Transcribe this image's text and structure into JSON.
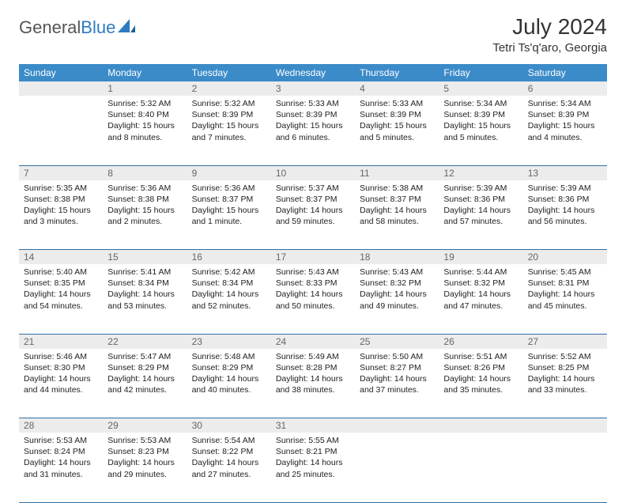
{
  "brand": {
    "part1": "General",
    "part2": "Blue"
  },
  "title": "July 2024",
  "location": "Tetri Ts'q'aro, Georgia",
  "weekdays": [
    "Sunday",
    "Monday",
    "Tuesday",
    "Wednesday",
    "Thursday",
    "Friday",
    "Saturday"
  ],
  "colors": {
    "header_bg": "#3b8bc9",
    "header_text": "#ffffff",
    "daynum_bg": "#ececec",
    "daynum_text": "#666666",
    "rule": "#2f6fa3",
    "body_text": "#222222"
  },
  "weeks": [
    [
      {
        "n": "",
        "sr": "",
        "ss": "",
        "dl": ""
      },
      {
        "n": "1",
        "sr": "Sunrise: 5:32 AM",
        "ss": "Sunset: 8:40 PM",
        "dl": "Daylight: 15 hours and 8 minutes."
      },
      {
        "n": "2",
        "sr": "Sunrise: 5:32 AM",
        "ss": "Sunset: 8:39 PM",
        "dl": "Daylight: 15 hours and 7 minutes."
      },
      {
        "n": "3",
        "sr": "Sunrise: 5:33 AM",
        "ss": "Sunset: 8:39 PM",
        "dl": "Daylight: 15 hours and 6 minutes."
      },
      {
        "n": "4",
        "sr": "Sunrise: 5:33 AM",
        "ss": "Sunset: 8:39 PM",
        "dl": "Daylight: 15 hours and 5 minutes."
      },
      {
        "n": "5",
        "sr": "Sunrise: 5:34 AM",
        "ss": "Sunset: 8:39 PM",
        "dl": "Daylight: 15 hours and 5 minutes."
      },
      {
        "n": "6",
        "sr": "Sunrise: 5:34 AM",
        "ss": "Sunset: 8:39 PM",
        "dl": "Daylight: 15 hours and 4 minutes."
      }
    ],
    [
      {
        "n": "7",
        "sr": "Sunrise: 5:35 AM",
        "ss": "Sunset: 8:38 PM",
        "dl": "Daylight: 15 hours and 3 minutes."
      },
      {
        "n": "8",
        "sr": "Sunrise: 5:36 AM",
        "ss": "Sunset: 8:38 PM",
        "dl": "Daylight: 15 hours and 2 minutes."
      },
      {
        "n": "9",
        "sr": "Sunrise: 5:36 AM",
        "ss": "Sunset: 8:37 PM",
        "dl": "Daylight: 15 hours and 1 minute."
      },
      {
        "n": "10",
        "sr": "Sunrise: 5:37 AM",
        "ss": "Sunset: 8:37 PM",
        "dl": "Daylight: 14 hours and 59 minutes."
      },
      {
        "n": "11",
        "sr": "Sunrise: 5:38 AM",
        "ss": "Sunset: 8:37 PM",
        "dl": "Daylight: 14 hours and 58 minutes."
      },
      {
        "n": "12",
        "sr": "Sunrise: 5:39 AM",
        "ss": "Sunset: 8:36 PM",
        "dl": "Daylight: 14 hours and 57 minutes."
      },
      {
        "n": "13",
        "sr": "Sunrise: 5:39 AM",
        "ss": "Sunset: 8:36 PM",
        "dl": "Daylight: 14 hours and 56 minutes."
      }
    ],
    [
      {
        "n": "14",
        "sr": "Sunrise: 5:40 AM",
        "ss": "Sunset: 8:35 PM",
        "dl": "Daylight: 14 hours and 54 minutes."
      },
      {
        "n": "15",
        "sr": "Sunrise: 5:41 AM",
        "ss": "Sunset: 8:34 PM",
        "dl": "Daylight: 14 hours and 53 minutes."
      },
      {
        "n": "16",
        "sr": "Sunrise: 5:42 AM",
        "ss": "Sunset: 8:34 PM",
        "dl": "Daylight: 14 hours and 52 minutes."
      },
      {
        "n": "17",
        "sr": "Sunrise: 5:43 AM",
        "ss": "Sunset: 8:33 PM",
        "dl": "Daylight: 14 hours and 50 minutes."
      },
      {
        "n": "18",
        "sr": "Sunrise: 5:43 AM",
        "ss": "Sunset: 8:32 PM",
        "dl": "Daylight: 14 hours and 49 minutes."
      },
      {
        "n": "19",
        "sr": "Sunrise: 5:44 AM",
        "ss": "Sunset: 8:32 PM",
        "dl": "Daylight: 14 hours and 47 minutes."
      },
      {
        "n": "20",
        "sr": "Sunrise: 5:45 AM",
        "ss": "Sunset: 8:31 PM",
        "dl": "Daylight: 14 hours and 45 minutes."
      }
    ],
    [
      {
        "n": "21",
        "sr": "Sunrise: 5:46 AM",
        "ss": "Sunset: 8:30 PM",
        "dl": "Daylight: 14 hours and 44 minutes."
      },
      {
        "n": "22",
        "sr": "Sunrise: 5:47 AM",
        "ss": "Sunset: 8:29 PM",
        "dl": "Daylight: 14 hours and 42 minutes."
      },
      {
        "n": "23",
        "sr": "Sunrise: 5:48 AM",
        "ss": "Sunset: 8:29 PM",
        "dl": "Daylight: 14 hours and 40 minutes."
      },
      {
        "n": "24",
        "sr": "Sunrise: 5:49 AM",
        "ss": "Sunset: 8:28 PM",
        "dl": "Daylight: 14 hours and 38 minutes."
      },
      {
        "n": "25",
        "sr": "Sunrise: 5:50 AM",
        "ss": "Sunset: 8:27 PM",
        "dl": "Daylight: 14 hours and 37 minutes."
      },
      {
        "n": "26",
        "sr": "Sunrise: 5:51 AM",
        "ss": "Sunset: 8:26 PM",
        "dl": "Daylight: 14 hours and 35 minutes."
      },
      {
        "n": "27",
        "sr": "Sunrise: 5:52 AM",
        "ss": "Sunset: 8:25 PM",
        "dl": "Daylight: 14 hours and 33 minutes."
      }
    ],
    [
      {
        "n": "28",
        "sr": "Sunrise: 5:53 AM",
        "ss": "Sunset: 8:24 PM",
        "dl": "Daylight: 14 hours and 31 minutes."
      },
      {
        "n": "29",
        "sr": "Sunrise: 5:53 AM",
        "ss": "Sunset: 8:23 PM",
        "dl": "Daylight: 14 hours and 29 minutes."
      },
      {
        "n": "30",
        "sr": "Sunrise: 5:54 AM",
        "ss": "Sunset: 8:22 PM",
        "dl": "Daylight: 14 hours and 27 minutes."
      },
      {
        "n": "31",
        "sr": "Sunrise: 5:55 AM",
        "ss": "Sunset: 8:21 PM",
        "dl": "Daylight: 14 hours and 25 minutes."
      },
      {
        "n": "",
        "sr": "",
        "ss": "",
        "dl": ""
      },
      {
        "n": "",
        "sr": "",
        "ss": "",
        "dl": ""
      },
      {
        "n": "",
        "sr": "",
        "ss": "",
        "dl": ""
      }
    ]
  ]
}
